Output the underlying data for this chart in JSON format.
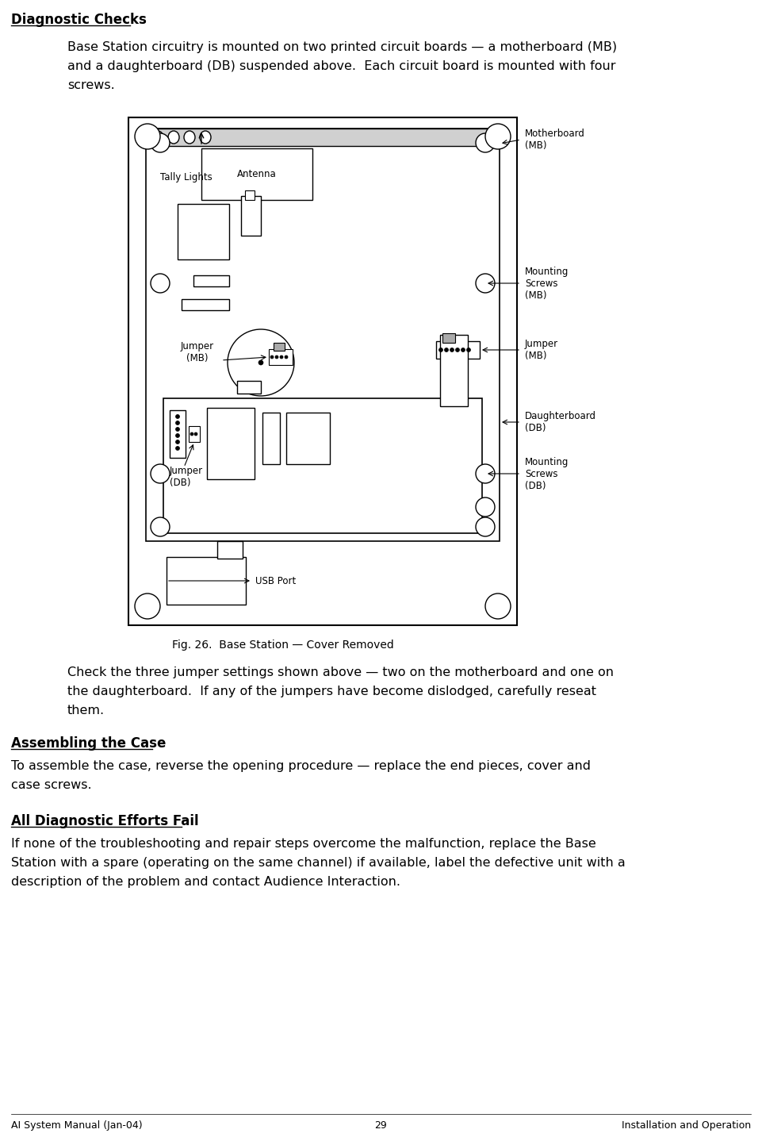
{
  "title": "Diagnostic Checks",
  "para1_line1": "Base Station circuitry is mounted on two printed circuit boards — a motherboard (MB)",
  "para1_line2": "and a daughterboard (DB) suspended above.  Each circuit board is mounted with four",
  "para1_line3": "screws.",
  "para2_line1": "Check the three jumper settings shown above — two on the motherboard and one on",
  "para2_line2": "the daughterboard.  If any of the jumpers have become dislodged, carefully reseat",
  "para2_line3": "them.",
  "heading2": "Assembling the Case",
  "para3_line1": "To assemble the case, reverse the opening procedure — replace the end pieces, cover and",
  "para3_line2": "case screws.",
  "heading3": "All Diagnostic Efforts Fail",
  "para4_line1": "If none of the troubleshooting and repair steps overcome the malfunction, replace the Base",
  "para4_line2": "Station with a spare (operating on the same channel) if available, label the defective unit with a",
  "para4_line3": "description of the problem and contact Audience Interaction.",
  "fig_caption": "Fig. 26.  Base Station — Cover Removed",
  "footer_left": "AI System Manual (Jan-04)",
  "footer_center": "29",
  "footer_right": "Installation and Operation",
  "bg_color": "#ffffff",
  "text_color": "#000000",
  "label_motherboard": "Motherboard\n(MB)",
  "label_mounting_mb": "Mounting\nScrews\n(MB)",
  "label_jumper_mb": "Jumper\n(MB)",
  "label_daughterboard": "Daughterboard\n(DB)",
  "label_mounting_db": "Mounting\nScrews\n(DB)",
  "label_tally": "Tally Lights",
  "label_antenna": "Antenna",
  "label_jumper_mb2": "Jumper\n(MB)",
  "label_jumper_db": "Jumper\n(DB)",
  "label_usb": "USB Port"
}
